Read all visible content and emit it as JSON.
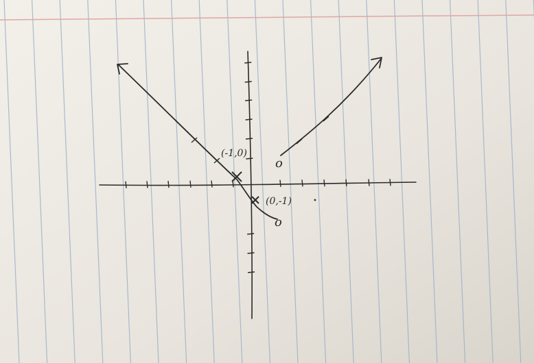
{
  "labels": {
    "point_a": "(-1,0)",
    "point_b": "(0,-1)"
  },
  "open_circle_symbol": "o",
  "colors": {
    "paper": "#ece8e1",
    "blue_rule": "#9db1c8",
    "margin_rule": "#e0a6a6",
    "ink": "#2a2a2a"
  }
}
